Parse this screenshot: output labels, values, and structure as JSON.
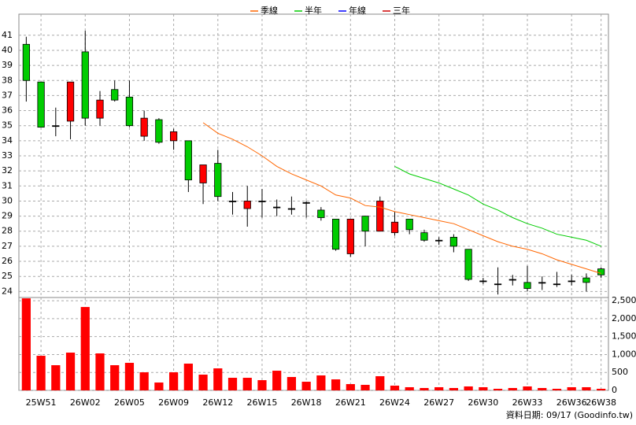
{
  "chart_data": [
    {
      "type": "candlestick",
      "open": [
        40.4,
        37.9,
        35.0,
        35.3,
        39.9,
        35.5,
        37.4,
        36.9,
        34.3,
        35.4,
        34.0,
        34.0,
        31.2,
        32.5,
        30.0,
        29.5,
        30.0,
        29.6,
        29.5,
        29.9,
        29.4,
        28.8,
        26.5,
        29.0,
        28.0,
        27.9,
        28.8,
        27.9,
        27.4,
        27.6,
        26.8,
        24.7,
        24.5,
        24.8,
        24.6,
        24.6,
        24.5,
        24.7,
        24.9,
        25.5
      ],
      "high": [
        40.9,
        37.9,
        36.2,
        37.9,
        41.3,
        37.3,
        38.0,
        38.0,
        36.0,
        35.5,
        34.8,
        34.0,
        32.4,
        33.4,
        30.6,
        31.0,
        30.8,
        30.1,
        30.3,
        30.0,
        29.6,
        28.8,
        28.8,
        29.0,
        30.3,
        29.3,
        28.8,
        28.1,
        27.6,
        27.8,
        26.8,
        24.9,
        25.6,
        25.1,
        25.7,
        25.0,
        25.3,
        25.1,
        25.2,
        25.6
      ],
      "low": [
        36.6,
        34.9,
        34.3,
        34.1,
        35.0,
        35.0,
        36.6,
        34.9,
        34.0,
        33.8,
        33.4,
        30.6,
        29.8,
        30.0,
        29.1,
        28.3,
        28.9,
        29.0,
        29.1,
        28.9,
        28.7,
        26.7,
        26.3,
        27.0,
        28.0,
        27.7,
        27.8,
        27.3,
        27.1,
        26.6,
        24.7,
        24.5,
        23.8,
        24.4,
        24.0,
        24.1,
        24.3,
        24.4,
        24.0,
        24.9
      ],
      "close": [
        38.0,
        34.9,
        35.0,
        37.9,
        35.5,
        36.7,
        36.7,
        35.0,
        35.5,
        33.9,
        34.6,
        31.4,
        32.4,
        30.3,
        30.0,
        30.0,
        30.0,
        29.6,
        29.5,
        29.9,
        28.9,
        26.8,
        28.8,
        28.0,
        30.0,
        28.6,
        28.1,
        27.4,
        27.4,
        27.0,
        24.8,
        24.7,
        24.5,
        24.8,
        24.2,
        24.6,
        24.5,
        24.7,
        24.6,
        25.1
      ],
      "up_color": "#ff0000",
      "down_color": "#00cc00",
      "series": [
        {
          "name": "季線",
          "color": "#ff6600",
          "values": [
            null,
            null,
            null,
            null,
            null,
            null,
            null,
            null,
            null,
            null,
            null,
            null,
            35.2,
            34.5,
            34.1,
            33.6,
            33.0,
            32.3,
            31.8,
            31.4,
            31.0,
            30.4,
            30.2,
            29.7,
            29.6,
            29.3,
            29.1,
            28.9,
            28.7,
            28.5,
            28.1,
            27.7,
            27.3,
            27.0,
            26.8,
            26.5,
            26.1,
            25.8,
            25.5,
            25.2
          ]
        },
        {
          "name": "半年",
          "color": "#00cc00",
          "values": [
            null,
            null,
            null,
            null,
            null,
            null,
            null,
            null,
            null,
            null,
            null,
            null,
            null,
            null,
            null,
            null,
            null,
            null,
            null,
            null,
            null,
            null,
            null,
            null,
            null,
            32.3,
            31.8,
            31.5,
            31.2,
            30.8,
            30.4,
            29.8,
            29.4,
            28.9,
            28.5,
            28.2,
            27.8,
            27.6,
            27.4,
            27.0
          ]
        },
        {
          "name": "年線",
          "color": "#0000ff",
          "values": [
            null,
            null,
            null,
            null,
            null,
            null,
            null,
            null,
            null,
            null,
            null,
            null,
            null,
            null,
            null,
            null,
            null,
            null,
            null,
            null,
            null,
            null,
            null,
            null,
            null,
            null,
            null,
            null,
            null,
            null,
            null,
            null,
            null,
            null,
            null,
            null,
            null,
            null,
            null,
            null
          ]
        },
        {
          "name": "三年",
          "color": "#cc0000",
          "values": [
            null,
            null,
            null,
            null,
            null,
            null,
            null,
            null,
            null,
            null,
            null,
            null,
            null,
            null,
            null,
            null,
            null,
            null,
            null,
            null,
            null,
            null,
            null,
            null,
            null,
            null,
            null,
            null,
            null,
            null,
            null,
            null,
            null,
            null,
            null,
            null,
            null,
            null,
            null,
            null
          ]
        }
      ],
      "ylim": [
        23.6,
        42.4
      ],
      "yticks": [
        24,
        25,
        26,
        27,
        28,
        29,
        30,
        31,
        32,
        33,
        34,
        35,
        36,
        37,
        38,
        39,
        40,
        41
      ],
      "grid": true,
      "legend": "top"
    },
    {
      "type": "bar",
      "categories": [
        null,
        "25W51",
        null,
        null,
        "26W02",
        null,
        null,
        "26W05",
        null,
        null,
        "26W09",
        null,
        null,
        "26W12",
        null,
        null,
        "26W15",
        null,
        null,
        "26W18",
        null,
        null,
        "26W21",
        null,
        null,
        "26W24",
        null,
        null,
        "26W27",
        null,
        null,
        "26W30",
        null,
        null,
        "26W33",
        null,
        null,
        "26W36",
        null,
        "26W38"
      ],
      "values": [
        2566,
        965,
        702,
        1053,
        2325,
        1031,
        702,
        768,
        504,
        219,
        504,
        746,
        439,
        614,
        351,
        351,
        285,
        548,
        373,
        241,
        417,
        307,
        175,
        154,
        395,
        132,
        88,
        66,
        88,
        66,
        110,
        88,
        44,
        66,
        110,
        66,
        44,
        88,
        88,
        44
      ],
      "color": "#ff0000",
      "ylim": [
        0,
        2590
      ],
      "yticks": [
        0,
        500,
        {
          "value": 1000,
          "label": "1,000"
        },
        {
          "value": 1500,
          "label": "1,500"
        },
        {
          "value": 2000,
          "label": "2,000"
        },
        {
          "value": 2500,
          "label": "2,500"
        }
      ],
      "grid": true,
      "footnote": "資料日期: 09/17  (Goodinfo.tw)"
    }
  ]
}
